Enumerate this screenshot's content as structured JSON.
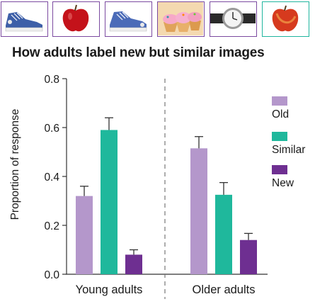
{
  "stimuli": [
    {
      "icon": "sneaker-icon",
      "frame": "#7b4aa0"
    },
    {
      "icon": "apple-icon",
      "frame": "#7b4aa0"
    },
    {
      "icon": "sneaker-icon",
      "frame": "#7b4aa0"
    },
    {
      "icon": "cupcakes-icon",
      "frame": "#7b4aa0"
    },
    {
      "icon": "wristwatch-icon",
      "frame": "#7b4aa0"
    },
    {
      "icon": "apple-icon",
      "frame": "#20b59e"
    }
  ],
  "title": "How adults label new but similar images",
  "chart_data": {
    "type": "bar",
    "title": "How adults label new but similar images",
    "ylabel": "Proportion of response",
    "xlabel": "",
    "ylim": [
      0,
      0.8
    ],
    "yticks": [
      "0.0",
      "0.2",
      "0.4",
      "0.6",
      "0.8"
    ],
    "categories": [
      "Young adults",
      "Older adults"
    ],
    "series": [
      {
        "name": "Old",
        "color": "#b497cb",
        "values": [
          0.32,
          0.515
        ],
        "error": [
          0.04,
          0.048
        ]
      },
      {
        "name": "Similar",
        "color": "#1fb89c",
        "values": [
          0.59,
          0.325
        ],
        "error": [
          0.05,
          0.05
        ]
      },
      {
        "name": "New",
        "color": "#6e2f91",
        "values": [
          0.08,
          0.14
        ],
        "error": [
          0.02,
          0.027
        ]
      }
    ],
    "legend_position": "right",
    "grid": false,
    "group_divider": "dashed"
  }
}
